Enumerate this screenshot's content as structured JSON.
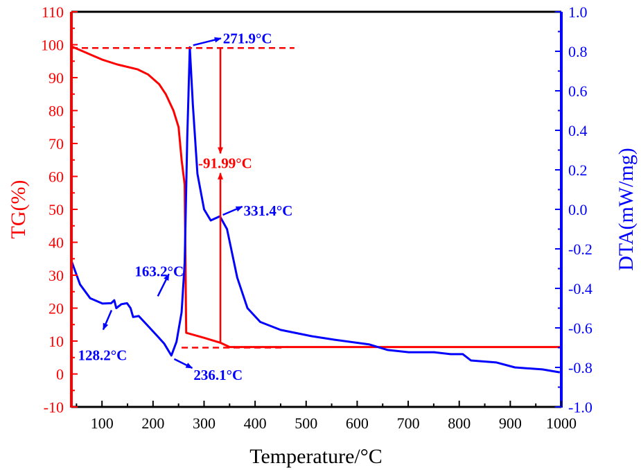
{
  "chart_data": {
    "type": "line",
    "xlabel": "Temperature/°C",
    "ylabel_left": "TG(%)",
    "ylabel_right": "DTA(mW/mg)",
    "xlim": [
      40,
      1000
    ],
    "ylim_left": [
      -10,
      110
    ],
    "ylim_right": [
      -1.0,
      1.0
    ],
    "xticks": [
      100,
      200,
      300,
      400,
      500,
      600,
      700,
      800,
      900,
      1000
    ],
    "yticks_left": [
      -10,
      0,
      10,
      20,
      30,
      40,
      50,
      60,
      70,
      80,
      90,
      100,
      110
    ],
    "yticks_right": [
      "-1.0",
      "-0.8",
      "-0.6",
      "-0.4",
      "-0.2",
      "0.0",
      "0.2",
      "0.4",
      "0.6",
      "0.8",
      "1.0"
    ],
    "grid": false,
    "colors": {
      "tg": "#ff0000",
      "dta": "#0000ff",
      "frame": "#000000"
    },
    "series": [
      {
        "axis": "left",
        "color": "#ff0000",
        "points": [
          [
            40,
            99.5
          ],
          [
            70,
            97.5
          ],
          [
            100,
            95.5
          ],
          [
            130,
            94
          ],
          [
            170,
            92.5
          ],
          [
            190,
            91
          ],
          [
            212,
            88
          ],
          [
            225,
            85
          ],
          [
            240,
            80
          ],
          [
            250,
            75
          ],
          [
            256,
            65
          ],
          [
            262,
            57.5
          ],
          [
            265,
            12.5
          ],
          [
            300,
            11
          ],
          [
            332,
            9.5
          ],
          [
            350,
            8.2
          ],
          [
            500,
            8.2
          ],
          [
            1000,
            8.2
          ]
        ]
      },
      {
        "axis": "right",
        "color": "#0000ff",
        "points": [
          [
            40,
            -0.26
          ],
          [
            57,
            -0.38
          ],
          [
            77,
            -0.45
          ],
          [
            101,
            -0.477
          ],
          [
            118,
            -0.475
          ],
          [
            124,
            -0.46
          ],
          [
            128,
            -0.5
          ],
          [
            138,
            -0.48
          ],
          [
            149,
            -0.475
          ],
          [
            156,
            -0.5
          ],
          [
            161,
            -0.545
          ],
          [
            172,
            -0.54
          ],
          [
            190,
            -0.59
          ],
          [
            208,
            -0.64
          ],
          [
            222,
            -0.68
          ],
          [
            236,
            -0.74
          ],
          [
            246,
            -0.67
          ],
          [
            256,
            -0.52
          ],
          [
            262,
            -0.27
          ],
          [
            267,
            0.36
          ],
          [
            272,
            0.82
          ],
          [
            278,
            0.53
          ],
          [
            287,
            0.18
          ],
          [
            300,
            0.0
          ],
          [
            313,
            -0.056
          ],
          [
            331,
            -0.035
          ],
          [
            345,
            -0.1
          ],
          [
            365,
            -0.345
          ],
          [
            385,
            -0.5
          ],
          [
            410,
            -0.57
          ],
          [
            450,
            -0.61
          ],
          [
            511,
            -0.642
          ],
          [
            556,
            -0.66
          ],
          [
            624,
            -0.684
          ],
          [
            660,
            -0.712
          ],
          [
            701,
            -0.723
          ],
          [
            751,
            -0.723
          ],
          [
            783,
            -0.733
          ],
          [
            807,
            -0.733
          ],
          [
            823,
            -0.765
          ],
          [
            873,
            -0.775
          ],
          [
            909,
            -0.8
          ],
          [
            963,
            -0.81
          ],
          [
            997,
            -0.825
          ]
        ]
      }
    ],
    "reference_lines": [
      {
        "axis": "left",
        "value": 99,
        "from": 40,
        "to": 477,
        "style": "dashed"
      },
      {
        "axis": "left",
        "value": 8,
        "from": 256,
        "to": 456,
        "style": "dashed"
      }
    ],
    "mass_loss_annotation": {
      "label": "-91.99°C",
      "x": 332,
      "top": 99,
      "bottom": 9.5
    },
    "annotations": [
      {
        "label": "271.9°C",
        "x": 271.9,
        "axis": "right",
        "y": 0.82
      },
      {
        "label": "331.4°C",
        "x": 331.4,
        "axis": "right",
        "y": -0.035
      },
      {
        "label": "163.2°C",
        "x": 163.2,
        "axis": "right",
        "y": -0.545
      },
      {
        "label": "128.2°C",
        "x": 128.2,
        "axis": "right",
        "y": -0.5
      },
      {
        "label": "236.1°C",
        "x": 236.1,
        "axis": "right",
        "y": -0.74
      }
    ]
  }
}
